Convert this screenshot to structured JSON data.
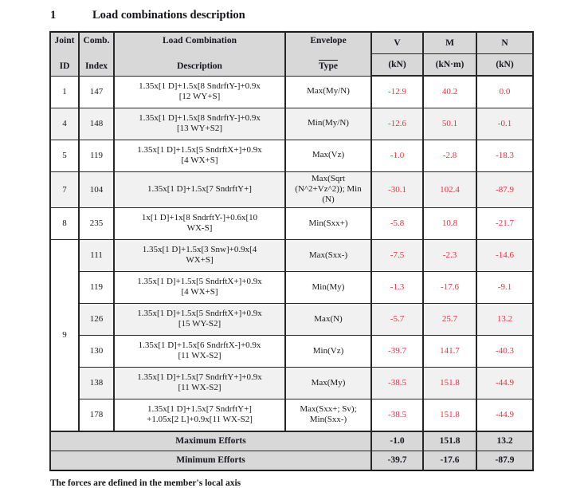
{
  "heading": {
    "number": "1",
    "title": "Load combinations description"
  },
  "footnote": "The forces are defined in the member's local axis",
  "table": {
    "headers": {
      "joint": {
        "line1": "Joint",
        "line2": "ID"
      },
      "comb": {
        "line1": "Comb.",
        "line2": "Index"
      },
      "desc": {
        "line1": "Load Combination",
        "line2": "Description"
      },
      "envelope": {
        "line1": "Envelope",
        "line2": "Type"
      },
      "v": {
        "label": "V",
        "unit": "(kN)"
      },
      "m": {
        "label": "M",
        "unit": "(kN·m)"
      },
      "n": {
        "label": "N",
        "unit": "(kN)"
      }
    },
    "groups": [
      {
        "joint": "1",
        "rows": [
          {
            "index": "147",
            "desc": "1.35x[1 D]+1.5x[8 SndrftY-]+0.9x\n[12 WY+S]",
            "envelope": "Max(My/N)",
            "v": "-12.9",
            "m": "40.2",
            "n": "0.0"
          }
        ]
      },
      {
        "joint": "4",
        "rows": [
          {
            "index": "148",
            "desc": "1.35x[1 D]+1.5x[8 SndrftY-]+0.9x\n[13 WY+S2]",
            "envelope": "Min(My/N)",
            "v": "-12.6",
            "m": "50.1",
            "n": "-0.1"
          }
        ]
      },
      {
        "joint": "5",
        "rows": [
          {
            "index": "119",
            "desc": "1.35x[1 D]+1.5x[5 SndrftX+]+0.9x\n[4 WX+S]",
            "envelope": "Max(Vz)",
            "v": "-1.0",
            "m": "-2.8",
            "n": "-18.3"
          }
        ]
      },
      {
        "joint": "7",
        "rows": [
          {
            "index": "104",
            "desc": "1.35x[1 D]+1.5x[7 SndrftY+]",
            "envelope": "Max(Sqrt\n(N^2+Vz^2)); Min\n(N)",
            "v": "-30.1",
            "m": "102.4",
            "n": "-87.9"
          }
        ]
      },
      {
        "joint": "8",
        "rows": [
          {
            "index": "235",
            "desc": "1x[1 D]+1x[8 SndrftY-]+0.6x[10\nWX-S]",
            "envelope": "Min(Sxx+)",
            "v": "-5.8",
            "m": "10.8",
            "n": "-21.7"
          }
        ]
      },
      {
        "joint": "9",
        "rows": [
          {
            "index": "111",
            "desc": "1.35x[1 D]+1.5x[3 Snw]+0.9x[4\nWX+S]",
            "envelope": "Max(Sxx-)",
            "v": "-7.5",
            "m": "-2.3",
            "n": "-14.6"
          },
          {
            "index": "119",
            "desc": "1.35x[1 D]+1.5x[5 SndrftX+]+0.9x\n[4 WX+S]",
            "envelope": "Min(My)",
            "v": "-1.3",
            "m": "-17.6",
            "n": "-9.1"
          },
          {
            "index": "126",
            "desc": "1.35x[1 D]+1.5x[5 SndrftX+]+0.9x\n[15 WY-S2]",
            "envelope": "Max(N)",
            "v": "-5.7",
            "m": "25.7",
            "n": "13.2"
          },
          {
            "index": "130",
            "desc": "1.35x[1 D]+1.5x[6 SndrftX-]+0.9x\n[11 WX-S2]",
            "envelope": "Min(Vz)",
            "v": "-39.7",
            "m": "141.7",
            "n": "-40.3"
          },
          {
            "index": "138",
            "desc": "1.35x[1 D]+1.5x[7 SndrftY+]+0.9x\n[11 WX-S2]",
            "envelope": "Max(My)",
            "v": "-38.5",
            "m": "151.8",
            "n": "-44.9"
          },
          {
            "index": "178",
            "desc": "1.35x[1 D]+1.5x[7 SndrftY+]\n+1.05x[2 L]+0.9x[11 WX-S2]",
            "envelope": "Max(Sxx+; Sv);\nMin(Sxx-)",
            "v": "-38.5",
            "m": "151.8",
            "n": "-44.9"
          }
        ]
      }
    ],
    "footer": [
      {
        "label": "Maximum Efforts",
        "v": "-1.0",
        "m": "151.8",
        "n": "13.2"
      },
      {
        "label": "Minimum Efforts",
        "v": "-39.7",
        "m": "-17.6",
        "n": "-87.9"
      }
    ],
    "colors": {
      "value_red": "#ee2e3d",
      "header_bg": "#d8d8d8",
      "alt_row_bg": "#f1f1f1",
      "effort_bg": "#d8d8d8"
    }
  }
}
